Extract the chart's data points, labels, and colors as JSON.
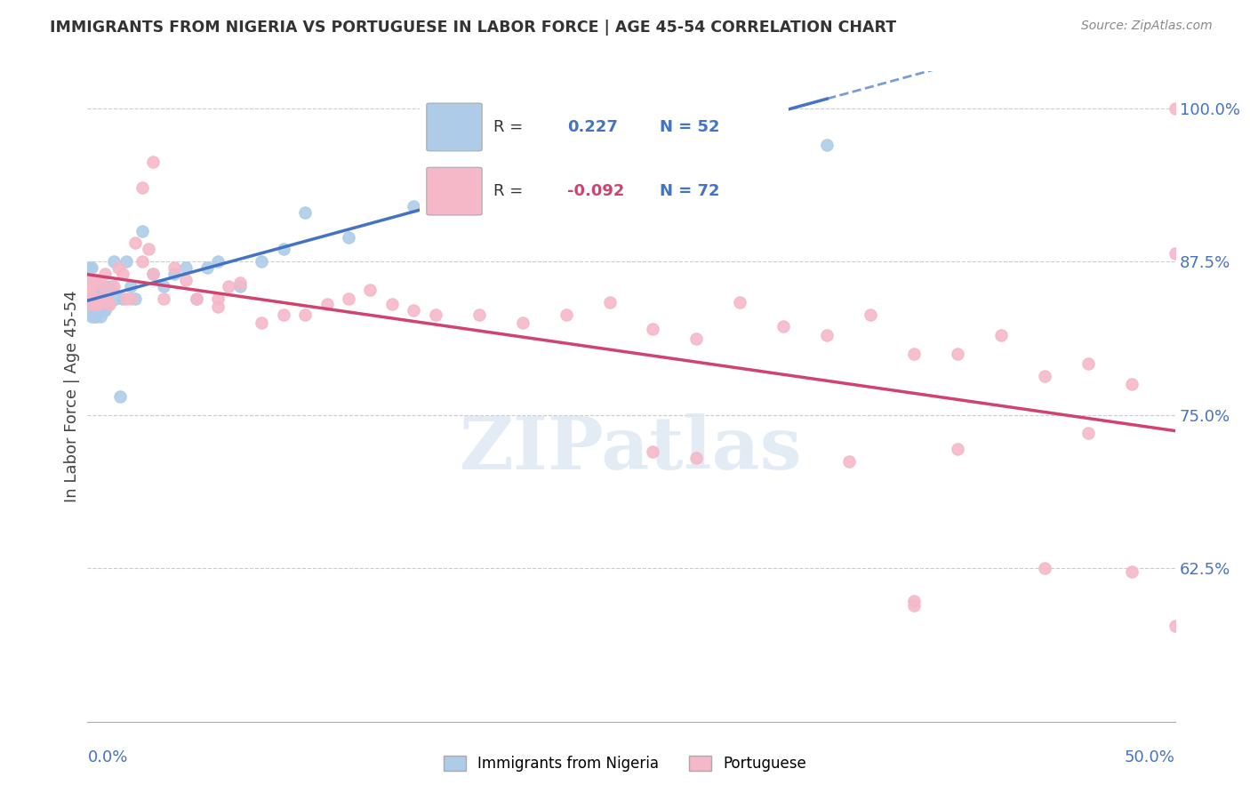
{
  "title": "IMMIGRANTS FROM NIGERIA VS PORTUGUESE IN LABOR FORCE | AGE 45-54 CORRELATION CHART",
  "source": "Source: ZipAtlas.com",
  "ylabel": "In Labor Force | Age 45-54",
  "xmin": 0.0,
  "xmax": 0.5,
  "ymin": 0.5,
  "ymax": 1.03,
  "yticks": [
    0.625,
    0.75,
    0.875,
    1.0
  ],
  "ytick_labels": [
    "62.5%",
    "75.0%",
    "87.5%",
    "100.0%"
  ],
  "nigeria_R": 0.227,
  "nigeria_N": 52,
  "portuguese_R": -0.092,
  "portuguese_N": 72,
  "nigeria_color": "#aecce8",
  "nigeria_line_color": "#4472c4",
  "portuguese_color": "#f5b8c8",
  "portuguese_line_color": "#d0436e",
  "watermark": "ZIPatlas",
  "nigeria_x": [
    0.0005,
    0.001,
    0.001,
    0.0015,
    0.002,
    0.002,
    0.002,
    0.003,
    0.003,
    0.003,
    0.003,
    0.004,
    0.004,
    0.004,
    0.004,
    0.005,
    0.005,
    0.005,
    0.006,
    0.006,
    0.006,
    0.007,
    0.007,
    0.008,
    0.008,
    0.009,
    0.01,
    0.011,
    0.012,
    0.013,
    0.015,
    0.016,
    0.018,
    0.02,
    0.022,
    0.025,
    0.03,
    0.035,
    0.04,
    0.045,
    0.05,
    0.055,
    0.06,
    0.07,
    0.08,
    0.09,
    0.1,
    0.12,
    0.15,
    0.18,
    0.2,
    0.34
  ],
  "nigeria_y": [
    0.833,
    0.86,
    0.87,
    0.845,
    0.83,
    0.84,
    0.87,
    0.83,
    0.84,
    0.85,
    0.86,
    0.83,
    0.84,
    0.85,
    0.86,
    0.835,
    0.845,
    0.855,
    0.83,
    0.84,
    0.85,
    0.835,
    0.845,
    0.835,
    0.855,
    0.838,
    0.84,
    0.855,
    0.875,
    0.845,
    0.765,
    0.845,
    0.875,
    0.855,
    0.845,
    0.9,
    0.865,
    0.855,
    0.865,
    0.87,
    0.845,
    0.87,
    0.875,
    0.855,
    0.875,
    0.885,
    0.915,
    0.895,
    0.92,
    0.96,
    0.98,
    0.97
  ],
  "portuguese_x": [
    0.0005,
    0.001,
    0.001,
    0.002,
    0.002,
    0.003,
    0.003,
    0.004,
    0.004,
    0.005,
    0.005,
    0.006,
    0.007,
    0.008,
    0.009,
    0.01,
    0.012,
    0.014,
    0.016,
    0.018,
    0.02,
    0.022,
    0.025,
    0.028,
    0.03,
    0.035,
    0.04,
    0.045,
    0.05,
    0.06,
    0.06,
    0.065,
    0.07,
    0.08,
    0.09,
    0.1,
    0.11,
    0.12,
    0.13,
    0.14,
    0.15,
    0.16,
    0.18,
    0.2,
    0.22,
    0.24,
    0.26,
    0.28,
    0.3,
    0.32,
    0.34,
    0.36,
    0.38,
    0.4,
    0.42,
    0.44,
    0.46,
    0.48,
    0.5,
    0.025,
    0.03,
    0.26,
    0.28,
    0.35,
    0.4,
    0.46,
    0.48,
    0.5,
    0.5,
    0.38,
    0.44,
    0.38
  ],
  "portuguese_y": [
    0.84,
    0.85,
    0.86,
    0.845,
    0.855,
    0.84,
    0.86,
    0.84,
    0.86,
    0.84,
    0.86,
    0.845,
    0.855,
    0.865,
    0.845,
    0.84,
    0.855,
    0.87,
    0.865,
    0.845,
    0.845,
    0.89,
    0.875,
    0.885,
    0.865,
    0.845,
    0.87,
    0.86,
    0.845,
    0.845,
    0.838,
    0.855,
    0.858,
    0.825,
    0.832,
    0.832,
    0.84,
    0.845,
    0.852,
    0.84,
    0.835,
    0.832,
    0.832,
    0.825,
    0.832,
    0.842,
    0.82,
    0.812,
    0.842,
    0.822,
    0.815,
    0.832,
    0.8,
    0.8,
    0.815,
    0.782,
    0.792,
    0.775,
    0.882,
    0.935,
    0.956,
    0.72,
    0.715,
    0.712,
    0.722,
    0.735,
    0.622,
    0.578,
    1.0,
    0.598,
    0.625,
    0.595
  ]
}
